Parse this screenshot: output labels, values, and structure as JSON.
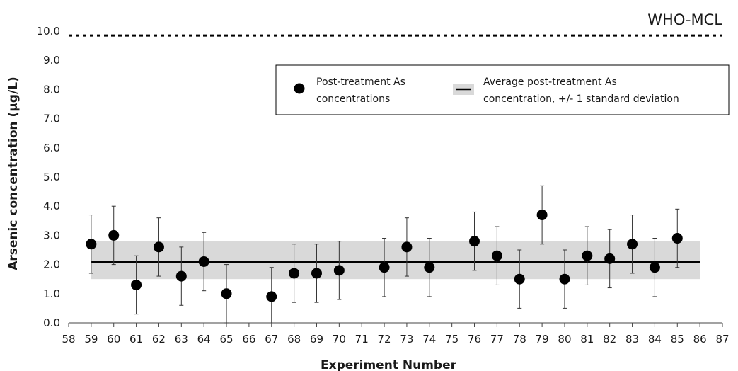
{
  "chart_data": {
    "type": "scatter",
    "title": "",
    "xlabel": "Experiment Number",
    "ylabel": "Arsenic concentration (µg/L)",
    "xlim": [
      58,
      87
    ],
    "ylim": [
      0.0,
      10.0
    ],
    "x_ticks": [
      58,
      59,
      60,
      61,
      62,
      63,
      64,
      65,
      66,
      67,
      68,
      69,
      70,
      71,
      72,
      73,
      74,
      75,
      76,
      77,
      78,
      79,
      80,
      81,
      82,
      83,
      84,
      85,
      86,
      87
    ],
    "y_ticks": [
      "0.0",
      "1.0",
      "2.0",
      "3.0",
      "4.0",
      "5.0",
      "6.0",
      "7.0",
      "8.0",
      "9.0",
      "10.0"
    ],
    "series": [
      {
        "name": "Post-treatment As concentrations",
        "color": "#000000",
        "x": [
          59,
          60,
          61,
          62,
          63,
          64,
          65,
          67,
          68,
          69,
          70,
          72,
          73,
          74,
          76,
          77,
          78,
          79,
          80,
          81,
          82,
          83,
          84,
          85
        ],
        "y": [
          2.7,
          3.0,
          1.3,
          2.6,
          1.6,
          2.1,
          1.0,
          0.9,
          1.7,
          1.7,
          1.8,
          1.9,
          2.6,
          1.9,
          2.8,
          2.3,
          1.5,
          3.7,
          1.5,
          2.3,
          2.2,
          2.7,
          1.9,
          2.9
        ],
        "error": [
          1.0,
          1.0,
          1.0,
          1.0,
          1.0,
          1.0,
          1.0,
          1.0,
          1.0,
          1.0,
          1.0,
          1.0,
          1.0,
          1.0,
          1.0,
          1.0,
          1.0,
          1.0,
          1.0,
          1.0,
          1.0,
          1.0,
          1.0,
          1.0
        ]
      }
    ],
    "average": {
      "name": "Average post-treatment As concentration, +/- 1 standard deviation",
      "value": 2.1,
      "band": [
        1.5,
        2.8
      ],
      "x_range": [
        59,
        86
      ],
      "line_color": "#000000",
      "band_color": "#d9d9d9"
    },
    "reference_line": {
      "label": "WHO-MCL",
      "value": 9.85,
      "style": "dashed"
    },
    "legend": {
      "position": "upper-right",
      "entries": [
        {
          "label_line1": "Post-treatment As",
          "label_line2": "concentrations"
        },
        {
          "label_line1": "Average post-treatment As",
          "label_line2": "concentration, +/- 1 standard deviation"
        }
      ]
    },
    "grid": false
  }
}
